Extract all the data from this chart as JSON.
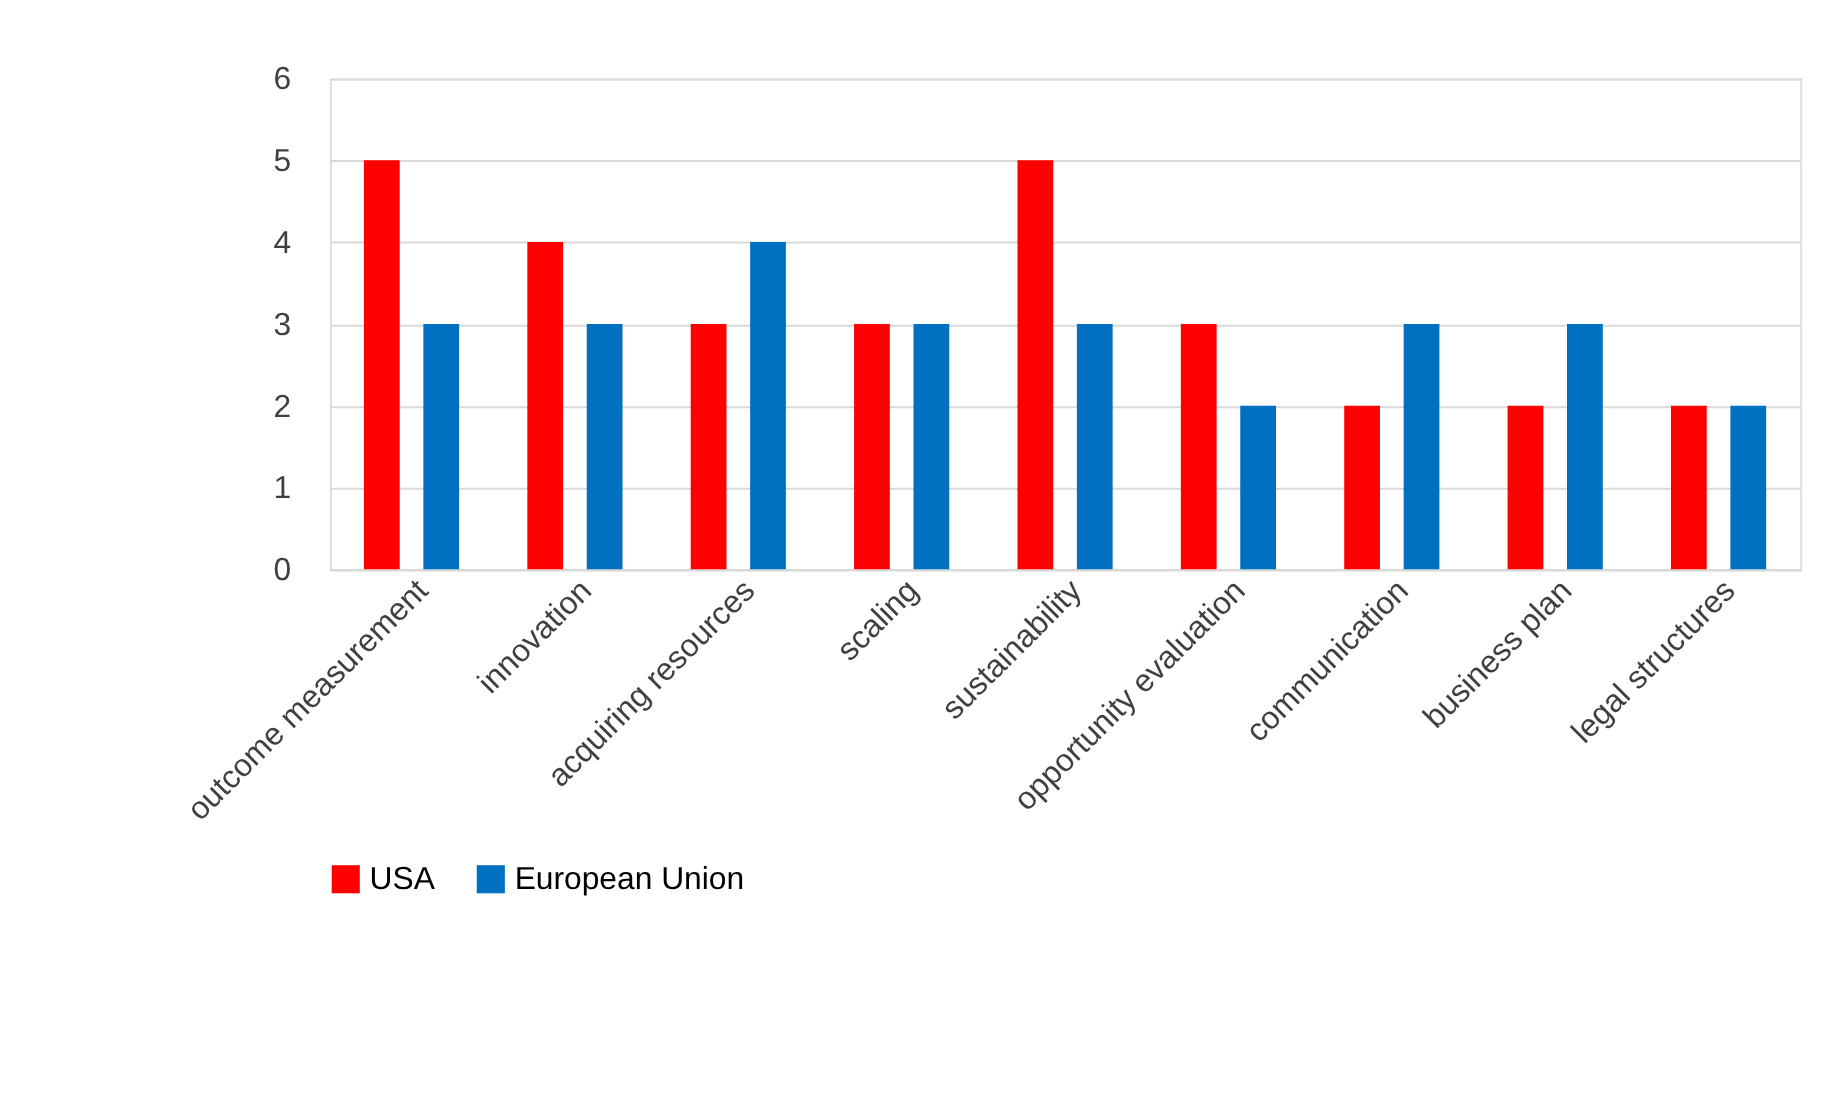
{
  "chart_data": {
    "type": "bar",
    "categories": [
      "outcome measurement",
      "innovation",
      "acquiring resources",
      "scaling",
      "sustainability",
      "opportunity evaluation",
      "communication",
      "business plan",
      "legal structures"
    ],
    "series": [
      {
        "name": "USA",
        "color": "#ff0000",
        "values": [
          5,
          4,
          3,
          3,
          5,
          3,
          2,
          2,
          2
        ]
      },
      {
        "name": "European Union",
        "color": "#0070c0",
        "values": [
          3,
          3,
          4,
          3,
          3,
          2,
          3,
          3,
          2
        ]
      }
    ],
    "ylim": [
      0,
      6
    ],
    "yticks": [
      0,
      1,
      2,
      3,
      4,
      5,
      6
    ],
    "grid": "y",
    "legend": "bottom"
  }
}
